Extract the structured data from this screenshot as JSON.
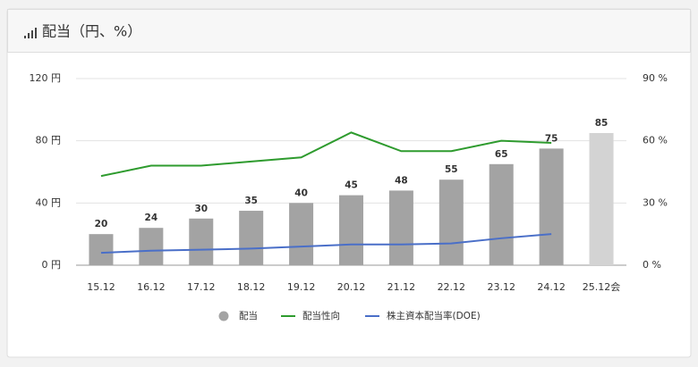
{
  "chart_data": {
    "type": "bar",
    "title": "配当（円、%）",
    "categories": [
      "15.12",
      "16.12",
      "17.12",
      "18.12",
      "19.12",
      "20.12",
      "21.12",
      "22.12",
      "23.12",
      "24.12",
      "25.12会"
    ],
    "series": [
      {
        "name": "配当",
        "type": "bar",
        "color": "#a3a3a3",
        "colors": [
          "#a3a3a3",
          "#a3a3a3",
          "#a3a3a3",
          "#a3a3a3",
          "#a3a3a3",
          "#a3a3a3",
          "#a3a3a3",
          "#a3a3a3",
          "#a3a3a3",
          "#a3a3a3",
          "#d3d3d3"
        ],
        "values": [
          20,
          24,
          30,
          35,
          40,
          45,
          48,
          55,
          65,
          75,
          85
        ]
      },
      {
        "name": "配当性向",
        "type": "line",
        "axis": "y2",
        "color": "#2e9b2e",
        "values": [
          43,
          48,
          48,
          50,
          52,
          64,
          55,
          55,
          60,
          59,
          null
        ]
      },
      {
        "name": "株主資本配当率(DOE)",
        "type": "line",
        "axis": "y2",
        "color": "#4a6fc8",
        "values": [
          6,
          7,
          7.5,
          8,
          9,
          10,
          10,
          10.5,
          13,
          15,
          null
        ]
      }
    ],
    "ylim": [
      0,
      120
    ],
    "yticks": [
      {
        "value": 0,
        "label": "0 円"
      },
      {
        "value": 40,
        "label": "40 円"
      },
      {
        "value": 80,
        "label": "80 円"
      },
      {
        "value": 120,
        "label": "120 円"
      }
    ],
    "y2lim": [
      0,
      90
    ],
    "y2ticks": [
      {
        "value": 0,
        "label": "0 %"
      },
      {
        "value": 30,
        "label": "30 %"
      },
      {
        "value": 60,
        "label": "60 %"
      },
      {
        "value": 90,
        "label": "90 %"
      }
    ],
    "grid": true,
    "legend": "bottom"
  }
}
